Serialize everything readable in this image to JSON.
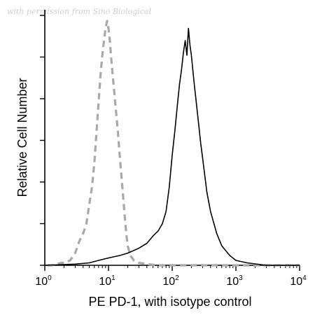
{
  "watermark": "with permission from Sino Biological",
  "chart_data": {
    "type": "line",
    "title": "",
    "xlabel": "PE PD-1, with isotype control",
    "ylabel": "Relative Cell Number",
    "x_scale": "log",
    "xlim": [
      1,
      10000
    ],
    "ylim": [
      0,
      100
    ],
    "x_ticks": [
      {
        "base": "10",
        "exp": "0"
      },
      {
        "base": "10",
        "exp": "1"
      },
      {
        "base": "10",
        "exp": "2"
      },
      {
        "base": "10",
        "exp": "3"
      },
      {
        "base": "10",
        "exp": "4"
      }
    ],
    "grid": false,
    "legend": "none",
    "series": [
      {
        "style": "dashed-gray",
        "x": [
          1.1,
          1.3,
          1.5,
          1.8,
          2,
          2.5,
          3,
          3.5,
          4,
          4.5,
          5,
          5.5,
          6,
          6.5,
          7,
          7.5,
          8,
          8.5,
          9,
          9.5,
          10,
          10.5,
          11,
          12,
          13,
          14,
          15,
          16,
          17,
          18,
          19,
          20,
          22,
          25,
          30,
          40,
          60,
          100,
          300,
          1000,
          3000,
          10000
        ],
        "y": [
          0,
          0,
          0.5,
          1,
          1,
          2,
          5,
          10,
          13,
          17,
          25,
          32,
          42,
          55,
          67,
          78,
          86,
          92,
          97,
          100,
          97,
          92,
          85,
          74,
          64,
          55,
          45,
          36,
          28,
          20,
          13,
          8,
          4,
          2,
          1,
          0.5,
          0,
          0,
          0,
          0,
          0,
          0
        ]
      },
      {
        "style": "solid-black",
        "x": [
          1,
          3,
          5,
          7,
          10,
          15,
          20,
          30,
          40,
          50,
          60,
          70,
          80,
          90,
          100,
          110,
          120,
          130,
          140,
          150,
          160,
          170,
          180,
          190,
          200,
          220,
          250,
          280,
          300,
          350,
          400,
          500,
          600,
          800,
          1000,
          1500,
          3000,
          10000
        ],
        "y": [
          0,
          0.5,
          1,
          2,
          3,
          4,
          5,
          7,
          9,
          12,
          14,
          17,
          22,
          32,
          45,
          55,
          65,
          74,
          80,
          87,
          92,
          86,
          97,
          90,
          86,
          75,
          62,
          50,
          44,
          30,
          22,
          13,
          8,
          4,
          2,
          1,
          0,
          0
        ]
      }
    ]
  }
}
